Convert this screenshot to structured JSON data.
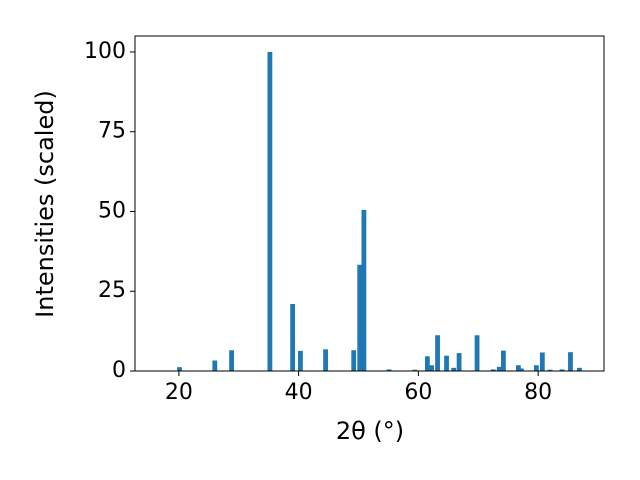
{
  "chart_data": {
    "type": "bar",
    "color": "#1f77b4",
    "xlabel": "2θ (°)",
    "ylabel": "Intensities (scaled)",
    "x": [
      20.1,
      26.0,
      28.8,
      35.2,
      39.0,
      40.3,
      44.5,
      49.2,
      50.2,
      50.9,
      55.1,
      59.4,
      61.5,
      62.2,
      63.2,
      64.7,
      65.9,
      66.8,
      69.8,
      72.5,
      73.5,
      74.2,
      76.7,
      77.2,
      79.7,
      80.7,
      82.0,
      84.0,
      85.4,
      86.9
    ],
    "values": [
      1.2,
      3.3,
      6.5,
      100,
      21,
      6.3,
      6.8,
      6.5,
      33.3,
      50.5,
      0.5,
      0.4,
      4.6,
      1.8,
      11.2,
      4.8,
      1.0,
      5.6,
      11.2,
      0.5,
      1.3,
      6.4,
      1.8,
      0.8,
      1.8,
      5.8,
      0.4,
      0.5,
      5.9,
      1.0
    ],
    "xlim": [
      12.67,
      91
    ],
    "ylim": [
      0,
      105
    ],
    "xticks": [
      20,
      40,
      60,
      80
    ],
    "yticks": [
      0,
      25,
      50,
      75,
      100
    ]
  }
}
